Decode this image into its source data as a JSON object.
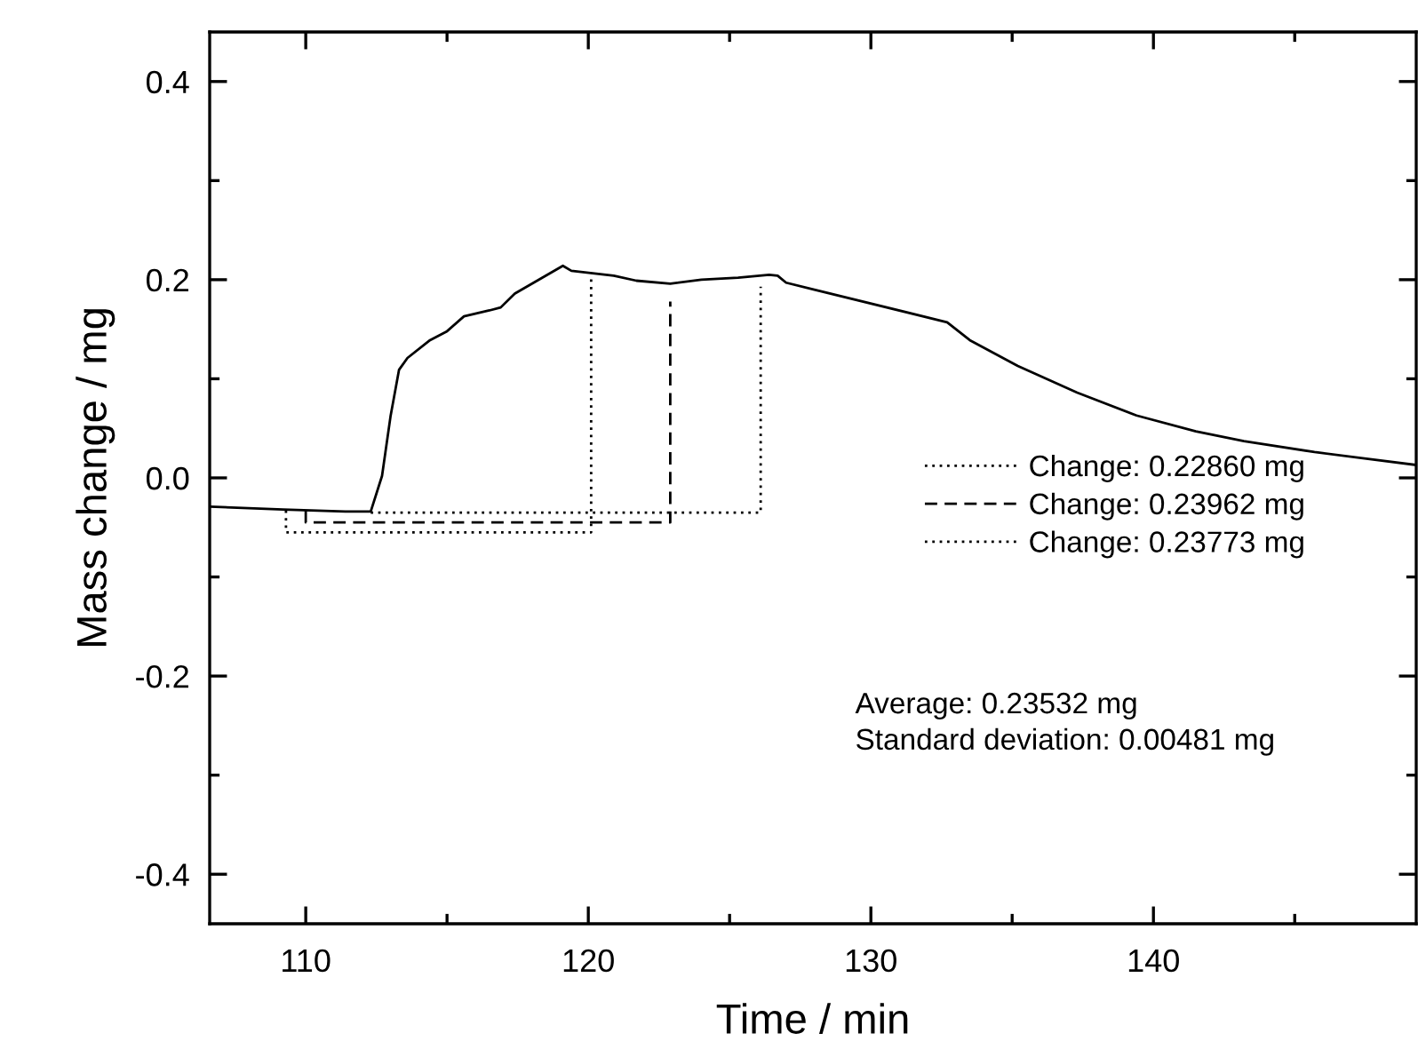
{
  "chart_data": {
    "type": "line",
    "xlabel": "Time / min",
    "ylabel": "Mass change / mg",
    "xlim": [
      106.6,
      149.3
    ],
    "ylim": [
      -0.45,
      0.45
    ],
    "xticks": [
      110,
      120,
      130,
      140
    ],
    "yticks": [
      -0.4,
      -0.2,
      {
        "value": 0,
        "label": "0.0"
      },
      0.2,
      0.4
    ],
    "grid": false,
    "legend": "bottom right",
    "marker": "none",
    "series": [
      {
        "color": "#000000",
        "line_style": "solid",
        "x": [
          106.6,
          109.2,
          111.4,
          112.3,
          112.7,
          113.0,
          113.3,
          113.6,
          114.4,
          115.0,
          115.6,
          116.5,
          116.9,
          117.4,
          119.1,
          119.4,
          120.9,
          121.7,
          122.9,
          124.0,
          125.3,
          126.4,
          126.7,
          127.0,
          128.0,
          132.7,
          133.5,
          135.2,
          137.3,
          139.4,
          141.5,
          143.2,
          145.7,
          149.3
        ],
        "values": [
          -0.029,
          -0.032,
          -0.034,
          -0.034,
          0.002,
          0.062,
          0.109,
          0.121,
          0.139,
          0.148,
          0.163,
          0.169,
          0.172,
          0.186,
          0.214,
          0.209,
          0.204,
          0.199,
          0.196,
          0.2,
          0.202,
          0.205,
          0.204,
          0.197,
          0.19,
          0.157,
          0.139,
          0.113,
          0.086,
          0.063,
          0.047,
          0.037,
          0.026,
          0.013
        ]
      },
      {
        "name": "Change: 0.22860 mg",
        "color": "#000000",
        "line_style": "dotted",
        "x": [
          109.3,
          109.3,
          120.1,
          120.1
        ],
        "values": [
          -0.033,
          -0.055,
          -0.055,
          0.205
        ]
      },
      {
        "name": "Change: 0.23962 mg",
        "color": "#000000",
        "line_style": "dashed",
        "x": [
          110.0,
          110.0,
          122.9,
          122.9
        ],
        "values": [
          -0.033,
          -0.045,
          -0.045,
          0.178
        ]
      },
      {
        "name": "Change: 0.23773 mg",
        "color": "#000000",
        "line_style": "dotted",
        "x": [
          112.3,
          126.1,
          126.1
        ],
        "values": [
          -0.035,
          -0.035,
          0.193
        ]
      }
    ],
    "annotations": [
      "Average: 0.23532 mg\nStandard deviation: 0.00481 mg"
    ]
  }
}
